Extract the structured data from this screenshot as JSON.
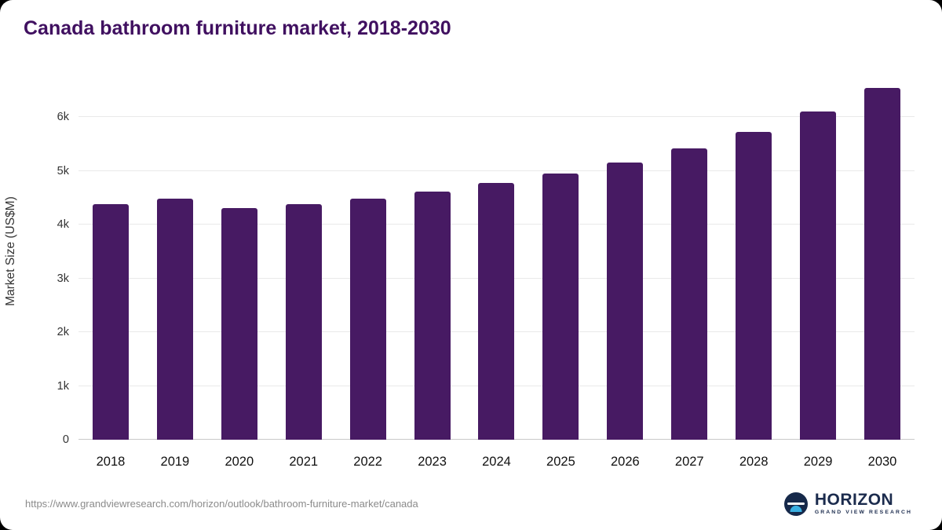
{
  "title": "Canada bathroom furniture market, 2018-2030",
  "chart_data": {
    "type": "bar",
    "categories": [
      "2018",
      "2019",
      "2020",
      "2021",
      "2022",
      "2023",
      "2024",
      "2025",
      "2026",
      "2027",
      "2028",
      "2029",
      "2030"
    ],
    "values": [
      4380,
      4490,
      4310,
      4380,
      4480,
      4620,
      4770,
      4950,
      5150,
      5420,
      5720,
      6100,
      6550
    ],
    "title": "Canada bathroom furniture market, 2018-2030",
    "xlabel": "",
    "ylabel": "Market Size (US$M)",
    "y_ticks": [
      {
        "value": 0,
        "label": "0"
      },
      {
        "value": 1000,
        "label": "1k"
      },
      {
        "value": 2000,
        "label": "2k"
      },
      {
        "value": 3000,
        "label": "3k"
      },
      {
        "value": 4000,
        "label": "4k"
      },
      {
        "value": 5000,
        "label": "5k"
      },
      {
        "value": 6000,
        "label": "6k"
      }
    ],
    "ylim": [
      0,
      6720
    ],
    "grid": true,
    "legend_position": "none",
    "bar_color": "#471a63"
  },
  "footer": {
    "source_url": "https://www.grandviewresearch.com/horizon/outlook/bathroom-furniture-market/canada",
    "logo": {
      "name": "HORIZON",
      "subtitle": "GRAND VIEW RESEARCH"
    }
  }
}
